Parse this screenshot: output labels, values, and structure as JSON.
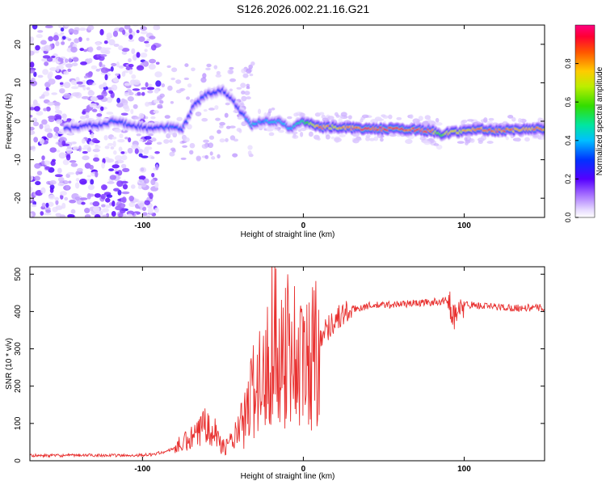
{
  "figure_title": "S126.2026.002.21.16.G21",
  "chart_data": [
    {
      "type": "heatmap",
      "title": "S126.2026.002.21.16.G21",
      "xlabel": "Height of straight line (km)",
      "ylabel": "Frequency (Hz)",
      "xlim": [
        -170,
        150
      ],
      "ylim": [
        -25,
        25
      ],
      "x_ticks": [
        -100,
        0,
        100
      ],
      "y_ticks": [
        -20,
        -10,
        0,
        10,
        20
      ],
      "colorbar": {
        "label": "Normalized spectral amplitude",
        "range": [
          0,
          1
        ],
        "ticks": [
          0.0,
          0.2,
          0.4,
          0.6,
          0.8
        ],
        "colormap": "rainbow (violet to red)"
      },
      "ridge": {
        "description": "dominant spectral line frequency vs height",
        "x": [
          -148,
          -135,
          -125,
          -118,
          -95,
          -85,
          -75,
          -68,
          -60,
          -50,
          -45,
          -38,
          -32,
          -25,
          -15,
          -8,
          0,
          10,
          20,
          40,
          60,
          80,
          85,
          90,
          100,
          110,
          120,
          140,
          150
        ],
        "y": [
          -2,
          -1,
          -1,
          0,
          -2,
          -1.5,
          -2,
          4,
          7,
          8,
          6,
          2,
          -1,
          0,
          0,
          -2,
          0,
          -1.5,
          -1.5,
          -2,
          -2,
          -2.5,
          -3.5,
          -3,
          -2.5,
          -2,
          -2.5,
          -2,
          -2
        ],
        "peak_amplitude": [
          0.3,
          0.3,
          0.3,
          0.35,
          0.3,
          0.35,
          0.35,
          0.3,
          0.35,
          0.3,
          0.3,
          0.35,
          0.45,
          0.4,
          0.45,
          0.4,
          0.55,
          0.9,
          0.8,
          0.95,
          0.95,
          0.9,
          0.6,
          0.8,
          0.8,
          0.9,
          0.9,
          0.85,
          0.85
        ]
      },
      "noise_region": {
        "x_range": [
          -170,
          -90
        ],
        "amplitude": "0.05 - 0.25 scattered"
      }
    },
    {
      "type": "line",
      "title": "",
      "xlabel": "Height of straight line (km)",
      "ylabel": "SNR (10 * v/v)",
      "xlim": [
        -170,
        150
      ],
      "ylim": [
        0,
        520
      ],
      "x_ticks": [
        -100,
        0,
        100
      ],
      "y_ticks": [
        0,
        100,
        200,
        300,
        400,
        500
      ],
      "color": "#e8302f",
      "series": [
        {
          "name": "SNR",
          "x": [
            -170,
            -150,
            -130,
            -110,
            -95,
            -85,
            -75,
            -65,
            -60,
            -55,
            -50,
            -45,
            -40,
            -35,
            -30,
            -25,
            -20,
            -15,
            -10,
            -5,
            0,
            5,
            10,
            20,
            30,
            40,
            60,
            80,
            90,
            95,
            100,
            110,
            130,
            150
          ],
          "y": [
            14,
            14,
            15,
            14,
            16,
            25,
            45,
            70,
            120,
            80,
            35,
            50,
            80,
            120,
            220,
            200,
            330,
            280,
            320,
            280,
            250,
            280,
            330,
            380,
            405,
            415,
            420,
            425,
            430,
            380,
            420,
            415,
            410,
            410
          ]
        }
      ]
    }
  ]
}
